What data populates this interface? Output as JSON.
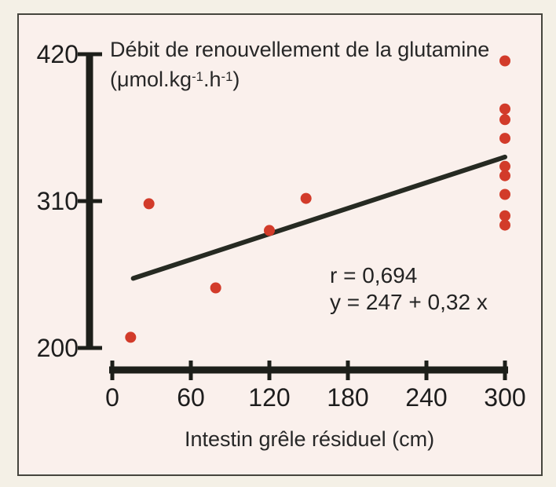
{
  "colors": {
    "dot": "#d23b2a",
    "axis": "#1d1f1a",
    "regression_line": "#262a22",
    "text": "#272727",
    "panel_background": "#faf0ec",
    "outer_background": "#f4f0e6",
    "panel_border": "#45453d"
  },
  "chart_data": {
    "type": "scatter",
    "title": "Débit de renouvellement de la glutamine",
    "unit_parts": {
      "open": "(μmol.kg",
      "sup1": "-1",
      "mid": ".h",
      "sup2": "-1",
      "close": ")"
    },
    "xlabel": "Intestin grêle résiduel (cm)",
    "ylabel": "",
    "xlim": [
      0,
      300
    ],
    "ylim": [
      200,
      420
    ],
    "x_ticks": [
      0,
      60,
      120,
      180,
      240,
      300
    ],
    "y_ticks": [
      420,
      310,
      200
    ],
    "grid": false,
    "points": [
      [
        14,
        208
      ],
      [
        28,
        308
      ],
      [
        79,
        245
      ],
      [
        120,
        288
      ],
      [
        148,
        312
      ],
      [
        300,
        415
      ],
      [
        300,
        379
      ],
      [
        300,
        371
      ],
      [
        300,
        357
      ],
      [
        300,
        336
      ],
      [
        300,
        329
      ],
      [
        300,
        315
      ],
      [
        300,
        299
      ],
      [
        300,
        292
      ]
    ],
    "regression": {
      "intercept": 247,
      "slope": 0.32,
      "x_start": 16,
      "x_end": 300
    },
    "annotation": {
      "line1": "r = 0,694",
      "line2": "y = 247 + 0,32 x"
    }
  }
}
